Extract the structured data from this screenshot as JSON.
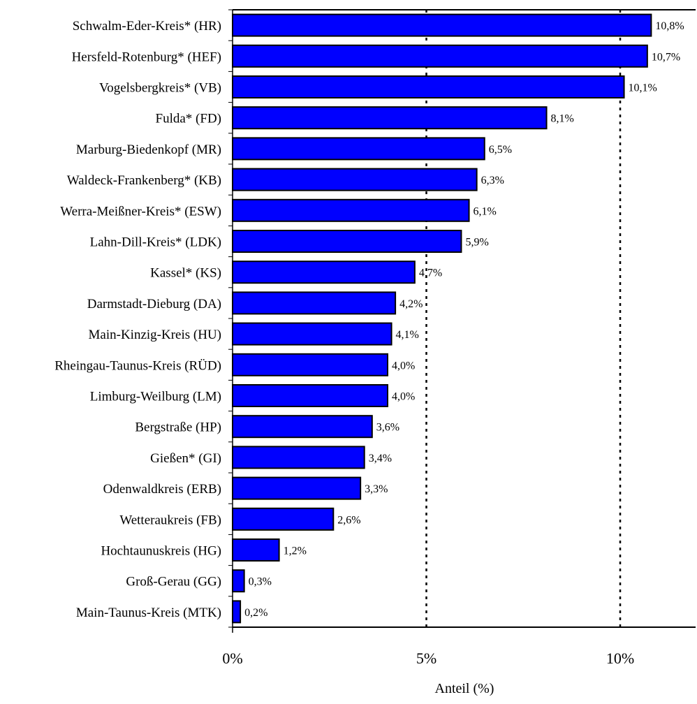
{
  "chart_data": {
    "type": "bar",
    "orientation": "horizontal",
    "categories": [
      "Schwalm-Eder-Kreis* (HR)",
      "Hersfeld-Rotenburg* (HEF)",
      "Vogelsbergkreis* (VB)",
      "Fulda* (FD)",
      "Marburg-Biedenkopf (MR)",
      "Waldeck-Frankenberg* (KB)",
      "Werra-Meißner-Kreis* (ESW)",
      "Lahn-Dill-Kreis* (LDK)",
      "Kassel* (KS)",
      "Darmstadt-Dieburg (DA)",
      "Main-Kinzig-Kreis (HU)",
      "Rheingau-Taunus-Kreis (RÜD)",
      "Limburg-Weilburg (LM)",
      "Bergstraße (HP)",
      "Gießen* (GI)",
      "Odenwaldkreis (ERB)",
      "Wetteraukreis (FB)",
      "Hochtaunuskreis (HG)",
      "Groß-Gerau (GG)",
      "Main-Taunus-Kreis (MTK)"
    ],
    "values": [
      10.8,
      10.7,
      10.1,
      8.1,
      6.5,
      6.3,
      6.1,
      5.9,
      4.7,
      4.2,
      4.1,
      4.0,
      4.0,
      3.6,
      3.4,
      3.3,
      2.6,
      1.2,
      0.3,
      0.2
    ],
    "value_labels": [
      "10,8%",
      "10,7%",
      "10,1%",
      "8,1%",
      "6,5%",
      "6,3%",
      "6,1%",
      "5,9%",
      "4,7%",
      "4,2%",
      "4,1%",
      "4,0%",
      "4,0%",
      "3,6%",
      "3,4%",
      "3,3%",
      "2,6%",
      "1,2%",
      "0,3%",
      "0,2%"
    ],
    "xlabel": "Anteil (%)",
    "ylabel": "",
    "xlim": [
      0,
      12
    ],
    "xticks": [
      0,
      5,
      10
    ],
    "xtick_labels": [
      "0%",
      "5%",
      "10%"
    ],
    "grid": "vertical dashed lines at 5% and 10%",
    "bar_color": "#0000FF",
    "bar_edge_color": "#000000"
  }
}
